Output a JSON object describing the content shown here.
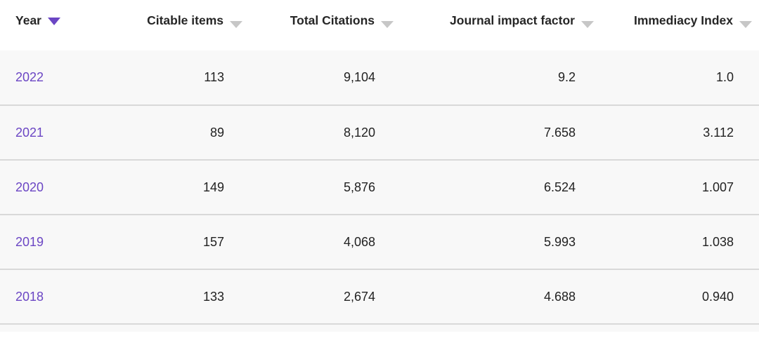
{
  "table": {
    "columns": [
      {
        "label": "Year",
        "sort_state": "active-desc"
      },
      {
        "label": "Citable items",
        "sort_state": "inactive"
      },
      {
        "label": "Total Citations",
        "sort_state": "inactive"
      },
      {
        "label": "Journal impact factor",
        "sort_state": "inactive"
      },
      {
        "label": "Immediacy Index",
        "sort_state": "inactive"
      }
    ],
    "rows": [
      {
        "year": "2022",
        "citable_items": "113",
        "total_citations": "9,104",
        "journal_impact_factor": "9.2",
        "immediacy_index": "1.0"
      },
      {
        "year": "2021",
        "citable_items": "89",
        "total_citations": "8,120",
        "journal_impact_factor": "7.658",
        "immediacy_index": "3.112"
      },
      {
        "year": "2020",
        "citable_items": "149",
        "total_citations": "5,876",
        "journal_impact_factor": "6.524",
        "immediacy_index": "1.007"
      },
      {
        "year": "2019",
        "citable_items": "157",
        "total_citations": "4,068",
        "journal_impact_factor": "5.993",
        "immediacy_index": "1.038"
      },
      {
        "year": "2018",
        "citable_items": "133",
        "total_citations": "2,674",
        "journal_impact_factor": "4.688",
        "immediacy_index": "0.940"
      }
    ]
  },
  "colors": {
    "accent": "#6b46c4",
    "header_text": "#262626",
    "value_text": "#222222",
    "row_bg": "#f8f8f8",
    "divider": "#d9d9d9",
    "sort_inactive": "#c7c7c7",
    "header_bg": "#ffffff"
  }
}
